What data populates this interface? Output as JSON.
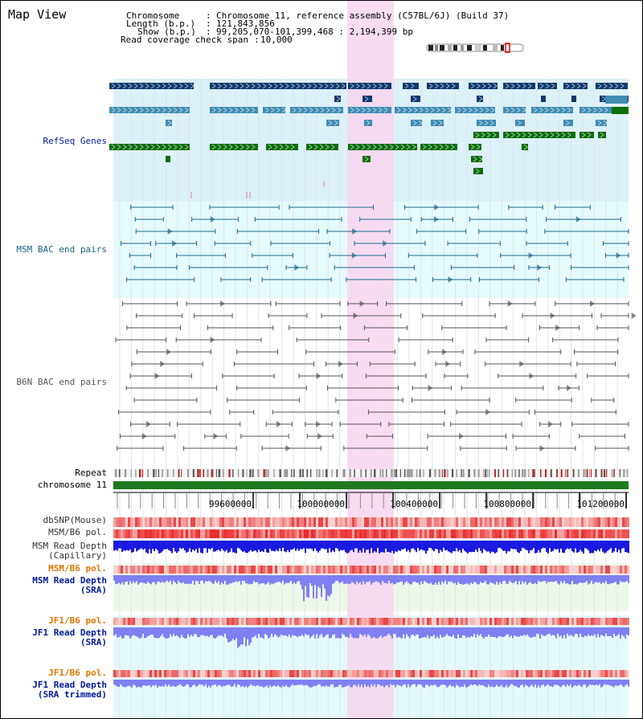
{
  "title": "Map View",
  "header": {
    "chromosome_key": "Chromosome",
    "chromosome_val": "Chromosome 11, reference assembly (C57BL/6J) (Build 37)",
    "length_key": "Length (b.p.)",
    "length_val": "121,843,856",
    "show_key": "Show (b.p.)",
    "show_val": "99,205,070-101,399,468 : 2,194,399 bp",
    "coverage_key": "Read coverage check span",
    "coverage_val": "10,000"
  },
  "tracks": {
    "refseq": "RefSeq Genes",
    "msm_bac": "MSM BAC end pairs",
    "b6n_bac": "B6N BAC end pairs",
    "repeat": "Repeat",
    "chromosome": "chromosome 11",
    "dbsnp": "dbSNP(Mouse)",
    "msm_b6_pol": "MSM/B6 pol.",
    "msm_depth_cap_1": "MSM Read Depth",
    "msm_depth_cap_2": "(Capillary)",
    "msm_b6_pol_2": "MSM/B6 pol.",
    "msm_depth_sra_1": "MSM Read Depth",
    "msm_depth_sra_2": "(SRA)",
    "jf1_pol_1": "JF1/B6 pol.",
    "jf1_depth_sra_1": "JF1 Read Depth",
    "jf1_depth_sra_2": "(SRA)",
    "jf1_pol_2": "JF1/B6 pol.",
    "jf1_depth_trim_1": "JF1 Read Depth",
    "jf1_depth_trim_2": "(SRA trimmed)"
  },
  "axis": {
    "ticks": [
      "99600000",
      "100000000",
      "100400000",
      "100800000",
      "101200000"
    ]
  },
  "colors": {
    "refseq_bg": "#ddf1f9",
    "msm_bg": "#e6fbfb",
    "highlight": "#f7d6ef",
    "gene_dark": "#0d3a6e",
    "gene_mid": "#3f8cb4",
    "gene_green": "#0b6e0b",
    "msm_line": "#1a6a8e",
    "b6n_line": "#555555",
    "chrom_green": "#1f7a1f",
    "depth_blue": "#1a1ae0",
    "depth_light": "#8080f2",
    "label_dark": "#000000",
    "label_navy": "#001a99",
    "label_teal": "#1a6080",
    "label_orange": "#e07800"
  }
}
